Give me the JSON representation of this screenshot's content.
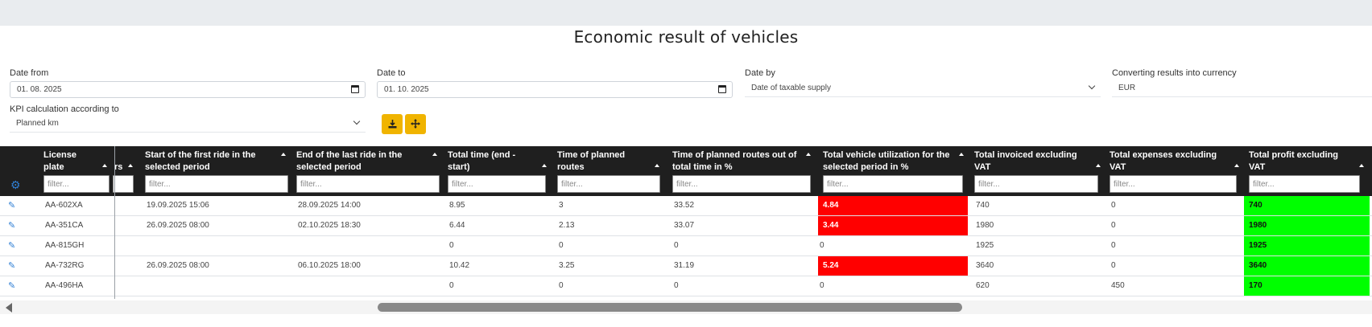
{
  "page": {
    "title": "Economic result of vehicles"
  },
  "filters": {
    "date_from": {
      "label": "Date from",
      "value": "01. 08. 2025"
    },
    "date_to": {
      "label": "Date to",
      "value": "01. 10. 2025"
    },
    "date_by": {
      "label": "Date by",
      "value": "Date of taxable supply"
    },
    "currency": {
      "label": "Converting results into currency",
      "value": "EUR"
    },
    "kpi": {
      "label": "KPI calculation according to",
      "value": "Planned km"
    }
  },
  "toolbar": {
    "download_icon": "download-icon",
    "expand_icon": "move-arrows-icon"
  },
  "table": {
    "filter_placeholder": "filter...",
    "columns": {
      "license_plate": "License plate",
      "partial": "rs",
      "first_ride": "Start of the first ride in the selected period",
      "last_ride": "End of the last ride in the selected period",
      "total_time": "Total time (end - start)",
      "planned_time": "Time of planned routes",
      "planned_pct": "Time of planned routes out of total time in %",
      "utilization": "Total vehicle utilization for the selected period in %",
      "invoiced": "Total invoiced excluding VAT",
      "expenses": "Total expenses excluding VAT",
      "profit": "Total profit excluding VAT"
    },
    "rows": [
      {
        "plate": "AA-602XA",
        "first": "19.09.2025 15:06",
        "last": "28.09.2025 14:00",
        "total": "8.95",
        "planned": "3",
        "pct": "33.52",
        "util": "4.84",
        "invoiced": "740",
        "expenses": "0",
        "profit": "740"
      },
      {
        "plate": "AA-351CA",
        "first": "26.09.2025 08:00",
        "last": "02.10.2025 18:30",
        "total": "6.44",
        "planned": "2.13",
        "pct": "33.07",
        "util": "3.44",
        "invoiced": "1980",
        "expenses": "0",
        "profit": "1980"
      },
      {
        "plate": "AA-815GH",
        "first": "",
        "last": "",
        "total": "0",
        "planned": "0",
        "pct": "0",
        "util": "0",
        "invoiced": "1925",
        "expenses": "0",
        "profit": "1925"
      },
      {
        "plate": "AA-732RG",
        "first": "26.09.2025 08:00",
        "last": "06.10.2025 18:00",
        "total": "10.42",
        "planned": "3.25",
        "pct": "31.19",
        "util": "5.24",
        "invoiced": "3640",
        "expenses": "0",
        "profit": "3640"
      },
      {
        "plate": "AA-496HA",
        "first": "",
        "last": "",
        "total": "0",
        "planned": "0",
        "pct": "0",
        "util": "0",
        "invoiced": "620",
        "expenses": "450",
        "profit": "170"
      }
    ]
  },
  "colors": {
    "header_bg": "#1f1f1f",
    "accent": "#f0b400",
    "low_util": "#ff0000",
    "profit": "#00ff00",
    "icon_blue": "#2f7fd4"
  }
}
